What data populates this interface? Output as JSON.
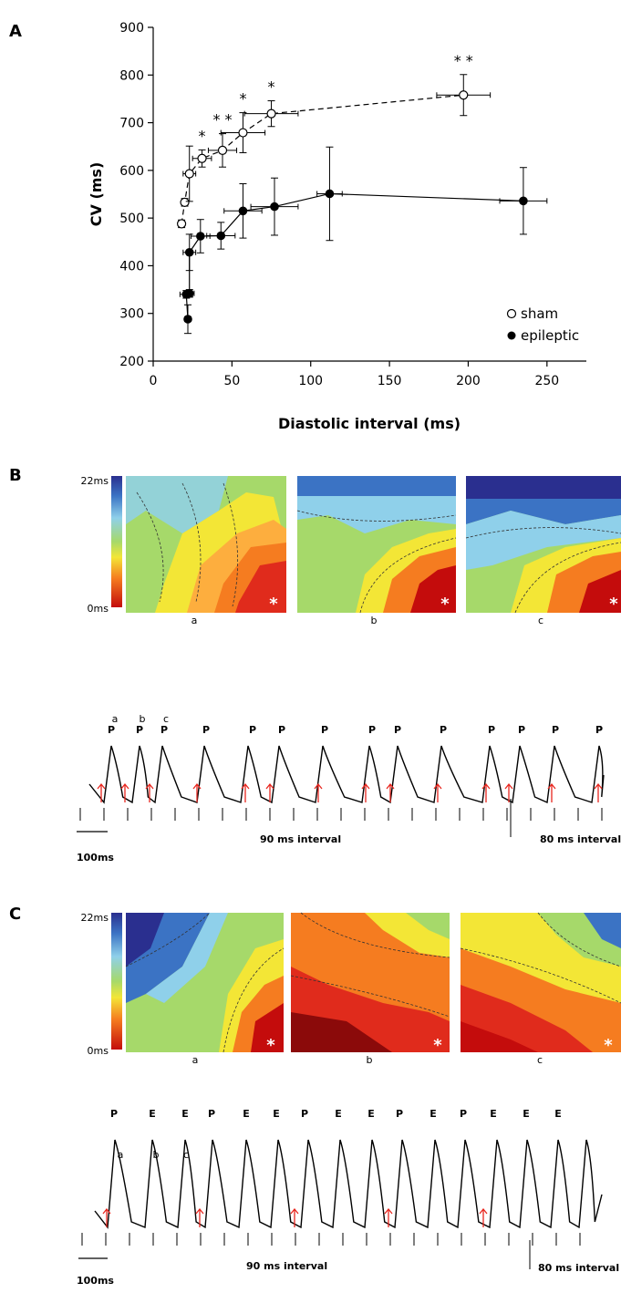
{
  "panels": {
    "a_letter": "A",
    "b_letter": "B",
    "c_letter": "C"
  },
  "chart_data": {
    "type": "scatter",
    "title": "",
    "xlabel": "Diastolic interval (ms)",
    "ylabel": "CV (ms)",
    "xlim": [
      0,
      275
    ],
    "ylim": [
      200,
      900
    ],
    "x_ticks": [
      "0",
      "50",
      "100",
      "150",
      "200",
      "250"
    ],
    "y_ticks": [
      "200",
      "300",
      "400",
      "500",
      "600",
      "700",
      "800",
      "900"
    ],
    "legend_position": "bottom-right",
    "series": [
      {
        "name": "sham",
        "marker": "open-circle",
        "line": "dashed",
        "points": [
          {
            "x": 18,
            "y": 488,
            "xerr": 2,
            "yerr": 8
          },
          {
            "x": 20,
            "y": 533,
            "xerr": 2,
            "yerr": 8
          },
          {
            "x": 23,
            "y": 593,
            "xerr": 4,
            "yerr": 58
          },
          {
            "x": 31,
            "y": 625,
            "xerr": 6,
            "yerr": 18
          },
          {
            "x": 44,
            "y": 642,
            "xerr": 9,
            "yerr": 35
          },
          {
            "x": 57,
            "y": 679,
            "xerr": 14,
            "yerr": 42
          },
          {
            "x": 75,
            "y": 719,
            "xerr": 17,
            "yerr": 27
          },
          {
            "x": 197,
            "y": 758,
            "xerr": 17,
            "yerr": 43
          }
        ]
      },
      {
        "name": "epileptic",
        "marker": "filled-circle",
        "line": "solid",
        "points": [
          {
            "x": 22,
            "y": 288,
            "xerr": 2,
            "yerr": 30
          },
          {
            "x": 21,
            "y": 340,
            "xerr": 4,
            "yerr": 8
          },
          {
            "x": 23,
            "y": 342,
            "xerr": 3,
            "yerr": 8
          },
          {
            "x": 23,
            "y": 428,
            "xerr": 4,
            "yerr": 38
          },
          {
            "x": 30,
            "y": 462,
            "xerr": 6,
            "yerr": 35
          },
          {
            "x": 43,
            "y": 463,
            "xerr": 9,
            "yerr": 28
          },
          {
            "x": 57,
            "y": 515,
            "xerr": 12,
            "yerr": 57
          },
          {
            "x": 77,
            "y": 524,
            "xerr": 15,
            "yerr": 60
          },
          {
            "x": 112,
            "y": 551,
            "xerr": 8,
            "yerr": 98
          },
          {
            "x": 235,
            "y": 536,
            "xerr": 15,
            "yerr": 70
          }
        ]
      }
    ],
    "annotations": [
      {
        "x": 31,
        "text": "*"
      },
      {
        "x": 44,
        "text": "* *"
      },
      {
        "x": 57,
        "text": "*"
      },
      {
        "x": 75,
        "text": "*"
      },
      {
        "x": 197,
        "text": "* *"
      }
    ]
  },
  "colorbar": {
    "max_label": "22ms",
    "min_label": "0ms"
  },
  "panel_b": {
    "map_labels": [
      "a",
      "b",
      "c"
    ],
    "peak_labels": [
      "P",
      "P",
      "P",
      "P",
      "P",
      "P",
      "P",
      "P",
      "P",
      "P",
      "P",
      "P",
      "P",
      "P",
      "P"
    ],
    "trace_labels": [
      "a",
      "b",
      "c"
    ],
    "scale_label": "100ms",
    "interval_90": "90 ms interval",
    "interval_80": "80 ms interval"
  },
  "panel_c": {
    "map_labels": [
      "a",
      "b",
      "c"
    ],
    "peak_labels": [
      "P",
      "E",
      "E",
      "P",
      "E",
      "E",
      "P",
      "E",
      "E",
      "P",
      "E",
      "P",
      "E",
      "E",
      "E"
    ],
    "trace_labels": [
      "a",
      "b",
      "c"
    ],
    "scale_label": "100ms",
    "interval_90": "90 ms interval",
    "interval_80": "80 ms interval"
  }
}
